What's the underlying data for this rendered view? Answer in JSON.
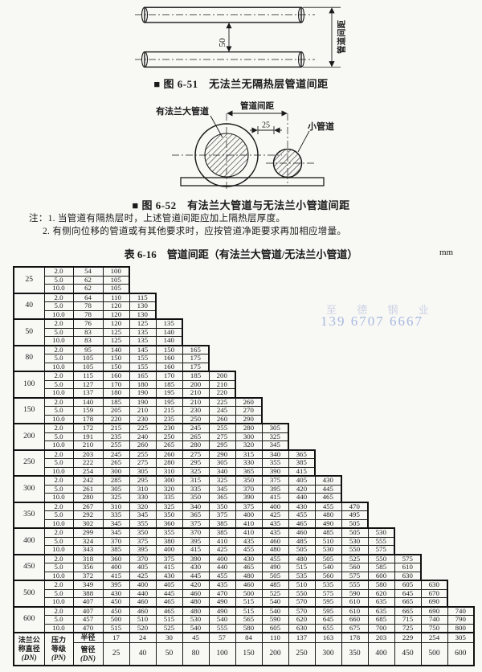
{
  "figure1": {
    "caption": "■ 图 6-51　无法兰无隔热层管道间距",
    "dim_label": "50",
    "side_label": "管道间距"
  },
  "figure2": {
    "caption": "■ 图 6-52　有法兰大管道与无法兰小管道间距",
    "label_big_pipe": "有法兰大管道",
    "label_spacing": "管道间距",
    "dim_label": "25",
    "label_small_pipe": "小管道"
  },
  "notes": [
    "注：1. 当管道有隔热层时，上述管道间距应加上隔热层厚度。",
    "2. 有侧向位移的管道或有其他要求时，应按管道净距要求再加相应增量。"
  ],
  "watermark": {
    "line1": "至 德 钢 业",
    "line2": "139 6707 6667"
  },
  "table": {
    "title": "表 6-16　管道间距（有法兰大管道/无法兰小管道）",
    "unit": "mm",
    "footer": {
      "col1_lines": [
        "法兰公",
        "称直径",
        "(DN)"
      ],
      "col2_lines": [
        "压力",
        "等级",
        "(PN)"
      ],
      "radius_label": "半径",
      "diameter_lines": [
        "管径",
        "(DN)"
      ],
      "radius_values": [
        "17",
        "24",
        "30",
        "45",
        "57",
        "84",
        "110",
        "137",
        "163",
        "178",
        "203",
        "229",
        "254",
        "305"
      ],
      "diameter_values": [
        "25",
        "40",
        "50",
        "80",
        "100",
        "150",
        "200",
        "250",
        "300",
        "350",
        "400",
        "450",
        "500",
        "600"
      ]
    },
    "groups": [
      {
        "dn": "25",
        "rows": [
          {
            "pn": "2.0",
            "radius": "54",
            "values": [
              "100"
            ]
          },
          {
            "pn": "5.0",
            "radius": "62",
            "values": [
              "105"
            ]
          },
          {
            "pn": "10.0",
            "radius": "62",
            "values": [
              "105"
            ]
          }
        ]
      },
      {
        "dn": "40",
        "rows": [
          {
            "pn": "2.0",
            "radius": "64",
            "values": [
              "110",
              "115"
            ]
          },
          {
            "pn": "5.0",
            "radius": "78",
            "values": [
              "120",
              "130"
            ]
          },
          {
            "pn": "10.0",
            "radius": "78",
            "values": [
              "120",
              "130"
            ]
          }
        ]
      },
      {
        "dn": "50",
        "rows": [
          {
            "pn": "2.0",
            "radius": "76",
            "values": [
              "120",
              "125",
              "135"
            ]
          },
          {
            "pn": "5.0",
            "radius": "83",
            "values": [
              "125",
              "135",
              "140"
            ]
          },
          {
            "pn": "10.0",
            "radius": "83",
            "values": [
              "125",
              "135",
              "140"
            ]
          }
        ]
      },
      {
        "dn": "80",
        "rows": [
          {
            "pn": "2.0",
            "radius": "95",
            "values": [
              "140",
              "145",
              "150",
              "165"
            ]
          },
          {
            "pn": "5.0",
            "radius": "105",
            "values": [
              "150",
              "155",
              "160",
              "175"
            ]
          },
          {
            "pn": "10.0",
            "radius": "105",
            "values": [
              "150",
              "155",
              "160",
              "175"
            ]
          }
        ]
      },
      {
        "dn": "100",
        "rows": [
          {
            "pn": "2.0",
            "radius": "115",
            "values": [
              "160",
              "165",
              "170",
              "185",
              "200"
            ]
          },
          {
            "pn": "5.0",
            "radius": "127",
            "values": [
              "170",
              "180",
              "185",
              "200",
              "210"
            ]
          },
          {
            "pn": "10.0",
            "radius": "137",
            "values": [
              "180",
              "190",
              "195",
              "210",
              "220"
            ]
          }
        ]
      },
      {
        "dn": "150",
        "rows": [
          {
            "pn": "2.0",
            "radius": "140",
            "values": [
              "185",
              "190",
              "195",
              "210",
              "225",
              "260"
            ]
          },
          {
            "pn": "5.0",
            "radius": "159",
            "values": [
              "205",
              "210",
              "215",
              "230",
              "245",
              "270"
            ]
          },
          {
            "pn": "10.0",
            "radius": "178",
            "values": [
              "220",
              "230",
              "235",
              "250",
              "260",
              "290"
            ]
          }
        ]
      },
      {
        "dn": "200",
        "rows": [
          {
            "pn": "2.0",
            "radius": "172",
            "values": [
              "215",
              "225",
              "230",
              "245",
              "255",
              "280",
              "305"
            ]
          },
          {
            "pn": "5.0",
            "radius": "191",
            "values": [
              "235",
              "240",
              "250",
              "265",
              "275",
              "300",
              "325"
            ]
          },
          {
            "pn": "10.0",
            "radius": "210",
            "values": [
              "255",
              "260",
              "265",
              "280",
              "295",
              "320",
              "345"
            ]
          }
        ]
      },
      {
        "dn": "250",
        "rows": [
          {
            "pn": "2.0",
            "radius": "203",
            "values": [
              "245",
              "255",
              "260",
              "275",
              "290",
              "315",
              "340",
              "365"
            ]
          },
          {
            "pn": "5.0",
            "radius": "222",
            "values": [
              "265",
              "275",
              "280",
              "295",
              "305",
              "330",
              "355",
              "385"
            ]
          },
          {
            "pn": "10.0",
            "radius": "254",
            "values": [
              "300",
              "305",
              "310",
              "325",
              "340",
              "365",
              "390",
              "415"
            ]
          }
        ]
      },
      {
        "dn": "300",
        "rows": [
          {
            "pn": "2.0",
            "radius": "242",
            "values": [
              "285",
              "295",
              "300",
              "315",
              "325",
              "350",
              "375",
              "405",
              "430"
            ]
          },
          {
            "pn": "5.0",
            "radius": "261",
            "values": [
              "305",
              "310",
              "320",
              "335",
              "345",
              "370",
              "395",
              "420",
              "445"
            ]
          },
          {
            "pn": "10.0",
            "radius": "280",
            "values": [
              "325",
              "330",
              "335",
              "350",
              "365",
              "390",
              "415",
              "440",
              "465"
            ]
          }
        ]
      },
      {
        "dn": "350",
        "rows": [
          {
            "pn": "2.0",
            "radius": "267",
            "values": [
              "310",
              "320",
              "325",
              "340",
              "350",
              "375",
              "400",
              "430",
              "455",
              "470"
            ]
          },
          {
            "pn": "5.0",
            "radius": "292",
            "values": [
              "335",
              "345",
              "350",
              "365",
              "375",
              "400",
              "425",
              "455",
              "480",
              "495"
            ]
          },
          {
            "pn": "10.0",
            "radius": "302",
            "values": [
              "345",
              "355",
              "360",
              "375",
              "385",
              "410",
              "435",
              "465",
              "490",
              "505"
            ]
          }
        ]
      },
      {
        "dn": "400",
        "rows": [
          {
            "pn": "2.0",
            "radius": "299",
            "values": [
              "345",
              "350",
              "355",
              "370",
              "385",
              "410",
              "435",
              "460",
              "485",
              "505",
              "530"
            ]
          },
          {
            "pn": "5.0",
            "radius": "324",
            "values": [
              "370",
              "375",
              "380",
              "395",
              "410",
              "435",
              "460",
              "485",
              "510",
              "530",
              "555"
            ]
          },
          {
            "pn": "10.0",
            "radius": "343",
            "values": [
              "385",
              "395",
              "400",
              "415",
              "425",
              "455",
              "480",
              "505",
              "530",
              "550",
              "575"
            ]
          }
        ]
      },
      {
        "dn": "450",
        "rows": [
          {
            "pn": "2.0",
            "radius": "318",
            "values": [
              "360",
              "370",
              "375",
              "390",
              "400",
              "430",
              "455",
              "480",
              "505",
              "525",
              "550",
              "575"
            ]
          },
          {
            "pn": "5.0",
            "radius": "356",
            "values": [
              "400",
              "405",
              "415",
              "430",
              "440",
              "465",
              "490",
              "515",
              "540",
              "560",
              "585",
              "610"
            ]
          },
          {
            "pn": "10.0",
            "radius": "372",
            "values": [
              "415",
              "425",
              "430",
              "445",
              "455",
              "480",
              "505",
              "535",
              "560",
              "575",
              "600",
              "630"
            ]
          }
        ]
      },
      {
        "dn": "500",
        "rows": [
          {
            "pn": "2.0",
            "radius": "349",
            "values": [
              "395",
              "400",
              "405",
              "420",
              "435",
              "460",
              "485",
              "510",
              "535",
              "555",
              "580",
              "605",
              "630"
            ]
          },
          {
            "pn": "5.0",
            "radius": "388",
            "values": [
              "430",
              "440",
              "445",
              "460",
              "470",
              "500",
              "525",
              "550",
              "575",
              "590",
              "620",
              "645",
              "670"
            ]
          },
          {
            "pn": "10.0",
            "radius": "407",
            "values": [
              "450",
              "460",
              "465",
              "480",
              "490",
              "515",
              "540",
              "570",
              "595",
              "610",
              "635",
              "665",
              "690"
            ]
          }
        ]
      },
      {
        "dn": "600",
        "rows": [
          {
            "pn": "2.0",
            "radius": "407",
            "values": [
              "450",
              "460",
              "465",
              "480",
              "490",
              "515",
              "540",
              "570",
              "595",
              "610",
              "635",
              "665",
              "690",
              "740"
            ]
          },
          {
            "pn": "5.0",
            "radius": "457",
            "values": [
              "500",
              "510",
              "515",
              "530",
              "540",
              "565",
              "590",
              "620",
              "645",
              "660",
              "685",
              "715",
              "740",
              "790"
            ]
          },
          {
            "pn": "10.0",
            "radius": "470",
            "values": [
              "515",
              "520",
              "525",
              "540",
              "555",
              "580",
              "605",
              "630",
              "655",
              "675",
              "700",
              "725",
              "750",
              "800"
            ]
          }
        ]
      }
    ]
  }
}
